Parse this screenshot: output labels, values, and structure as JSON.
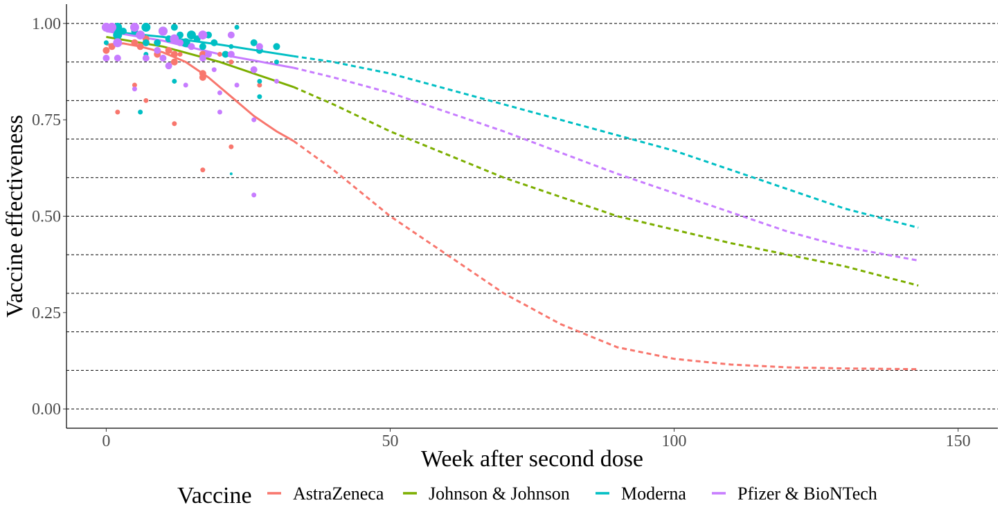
{
  "chart_data": {
    "type": "scatter",
    "xlabel": "Week after second dose",
    "ylabel": "Vaccine effectiveness",
    "xlim": [
      -7,
      157
    ],
    "ylim": [
      -0.05,
      1.05
    ],
    "x_ticks": [
      0,
      50,
      100,
      150
    ],
    "x_tick_labels": [
      "0",
      "50",
      "100",
      "150"
    ],
    "y_ticks": [
      0,
      0.25,
      0.5,
      0.75,
      1
    ],
    "y_tick_labels": [
      "0.00",
      "0.25",
      "0.50",
      "0.75",
      "1.00"
    ],
    "gridlines_y": [
      0,
      0.1,
      0.2,
      0.3,
      0.4,
      0.5,
      0.6,
      0.7,
      0.8,
      0.9,
      1.0
    ],
    "grid": "horizontal dashed",
    "legend": {
      "title": "Vaccine",
      "position": "bottom",
      "entries": [
        "AstraZeneca",
        "Johnson & Johnson",
        "Moderna",
        "Pfizer & BioNTech"
      ]
    },
    "fit_observed_until_week": 33,
    "series": [
      {
        "name": "AstraZeneca",
        "color": "#F8766D",
        "points": [
          [
            0,
            0.93,
            3
          ],
          [
            1,
            0.94,
            3
          ],
          [
            2,
            0.77,
            2
          ],
          [
            5,
            0.84,
            2
          ],
          [
            5,
            0.95,
            3
          ],
          [
            6,
            0.94,
            3
          ],
          [
            7,
            0.95,
            3
          ],
          [
            7,
            0.8,
            2
          ],
          [
            7,
            0.96,
            3
          ],
          [
            9,
            0.92,
            3
          ],
          [
            11,
            0.93,
            3
          ],
          [
            12,
            0.74,
            2
          ],
          [
            12,
            0.92,
            3
          ],
          [
            12,
            0.9,
            3
          ],
          [
            13,
            0.92,
            2
          ],
          [
            14,
            0.95,
            3
          ],
          [
            17,
            0.92,
            3
          ],
          [
            17,
            0.87,
            3
          ],
          [
            17,
            0.62,
            2
          ],
          [
            17,
            0.86,
            3
          ],
          [
            20,
            0.92,
            2
          ],
          [
            22,
            0.68,
            2
          ],
          [
            22,
            0.9,
            2
          ],
          [
            26,
            0.88,
            2
          ],
          [
            27,
            0.84,
            2
          ]
        ],
        "trend": [
          [
            0,
            0.945
          ],
          [
            3,
            0.948
          ],
          [
            6,
            0.94
          ],
          [
            10,
            0.925
          ],
          [
            14,
            0.9
          ],
          [
            18,
            0.86
          ],
          [
            22,
            0.81
          ],
          [
            26,
            0.76
          ],
          [
            30,
            0.72
          ],
          [
            33,
            0.695
          ],
          [
            40,
            0.62
          ],
          [
            50,
            0.5
          ],
          [
            60,
            0.4
          ],
          [
            70,
            0.3
          ],
          [
            80,
            0.22
          ],
          [
            90,
            0.16
          ],
          [
            100,
            0.13
          ],
          [
            110,
            0.115
          ],
          [
            120,
            0.108
          ],
          [
            130,
            0.105
          ],
          [
            143,
            0.103
          ]
        ]
      },
      {
        "name": "Johnson & Johnson",
        "color": "#7CAE00",
        "points": [],
        "trend": [
          [
            0,
            0.965
          ],
          [
            10,
            0.94
          ],
          [
            20,
            0.9
          ],
          [
            33,
            0.835
          ],
          [
            40,
            0.79
          ],
          [
            50,
            0.72
          ],
          [
            60,
            0.66
          ],
          [
            70,
            0.6
          ],
          [
            80,
            0.55
          ],
          [
            90,
            0.5
          ],
          [
            100,
            0.465
          ],
          [
            110,
            0.43
          ],
          [
            120,
            0.4
          ],
          [
            130,
            0.37
          ],
          [
            143,
            0.32
          ]
        ]
      },
      {
        "name": "Moderna",
        "color": "#00BFC4",
        "points": [
          [
            0,
            0.95,
            2
          ],
          [
            1,
            0.99,
            3
          ],
          [
            2,
            0.97,
            4
          ],
          [
            2,
            0.99,
            4
          ],
          [
            3,
            0.98,
            3
          ],
          [
            5,
            0.98,
            3
          ],
          [
            6,
            0.97,
            3
          ],
          [
            6,
            0.77,
            2
          ],
          [
            7,
            0.99,
            4
          ],
          [
            7,
            0.92,
            2
          ],
          [
            7,
            0.95,
            3
          ],
          [
            9,
            0.95,
            3
          ],
          [
            10,
            0.98,
            4
          ],
          [
            11,
            0.96,
            3
          ],
          [
            12,
            0.99,
            3
          ],
          [
            12,
            0.85,
            2
          ],
          [
            13,
            0.97,
            3
          ],
          [
            14,
            0.95,
            4
          ],
          [
            15,
            0.97,
            4
          ],
          [
            16,
            0.96,
            3
          ],
          [
            17,
            0.94,
            3
          ],
          [
            18,
            0.97,
            3
          ],
          [
            19,
            0.95,
            3
          ],
          [
            21,
            0.92,
            3
          ],
          [
            22,
            0.94,
            2
          ],
          [
            22,
            0.61,
            1
          ],
          [
            23,
            0.99,
            2
          ],
          [
            26,
            0.95,
            3
          ],
          [
            27,
            0.93,
            3
          ],
          [
            27,
            0.81,
            2
          ],
          [
            27,
            0.85,
            2
          ],
          [
            30,
            0.9,
            2
          ],
          [
            30,
            0.94,
            3
          ]
        ],
        "trend": [
          [
            0,
            0.98
          ],
          [
            10,
            0.965
          ],
          [
            20,
            0.945
          ],
          [
            33,
            0.915
          ],
          [
            40,
            0.9
          ],
          [
            50,
            0.87
          ],
          [
            60,
            0.83
          ],
          [
            70,
            0.79
          ],
          [
            80,
            0.75
          ],
          [
            90,
            0.71
          ],
          [
            100,
            0.67
          ],
          [
            110,
            0.62
          ],
          [
            120,
            0.57
          ],
          [
            130,
            0.52
          ],
          [
            143,
            0.47
          ]
        ]
      },
      {
        "name": "Pfizer & BioNTech",
        "color": "#C77CFF",
        "points": [
          [
            0,
            0.99,
            4
          ],
          [
            0,
            0.91,
            3
          ],
          [
            1,
            0.99,
            4
          ],
          [
            2,
            0.95,
            4
          ],
          [
            2,
            0.91,
            3
          ],
          [
            5,
            0.99,
            4
          ],
          [
            5,
            0.83,
            2
          ],
          [
            6,
            0.97,
            4
          ],
          [
            7,
            0.91,
            3
          ],
          [
            9,
            0.93,
            3
          ],
          [
            10,
            0.98,
            4
          ],
          [
            10,
            0.91,
            3
          ],
          [
            11,
            0.89,
            3
          ],
          [
            12,
            0.96,
            4
          ],
          [
            13,
            0.95,
            3
          ],
          [
            14,
            0.84,
            2
          ],
          [
            15,
            0.94,
            3
          ],
          [
            17,
            0.97,
            4
          ],
          [
            17,
            0.91,
            3
          ],
          [
            18,
            0.92,
            3
          ],
          [
            19,
            0.88,
            2
          ],
          [
            20,
            0.82,
            2
          ],
          [
            20,
            0.77,
            2
          ],
          [
            22,
            0.97,
            3
          ],
          [
            22,
            0.92,
            3
          ],
          [
            23,
            0.84,
            2
          ],
          [
            26,
            0.88,
            3
          ],
          [
            26,
            0.75,
            2
          ],
          [
            26,
            0.555,
            2
          ],
          [
            27,
            0.94,
            3
          ],
          [
            30,
            0.85,
            2
          ]
        ],
        "trend": [
          [
            0,
            0.98
          ],
          [
            10,
            0.955
          ],
          [
            20,
            0.92
          ],
          [
            33,
            0.885
          ],
          [
            40,
            0.86
          ],
          [
            50,
            0.82
          ],
          [
            60,
            0.77
          ],
          [
            70,
            0.72
          ],
          [
            80,
            0.665
          ],
          [
            90,
            0.61
          ],
          [
            100,
            0.56
          ],
          [
            110,
            0.51
          ],
          [
            120,
            0.46
          ],
          [
            130,
            0.42
          ],
          [
            143,
            0.385
          ]
        ]
      }
    ]
  }
}
